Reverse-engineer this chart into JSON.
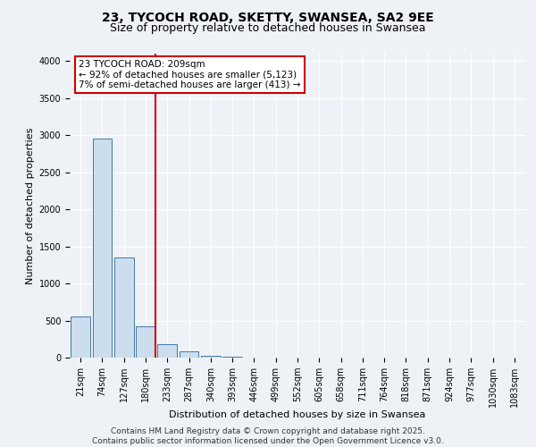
{
  "title": "23, TYCOCH ROAD, SKETTY, SWANSEA, SA2 9EE",
  "subtitle": "Size of property relative to detached houses in Swansea",
  "xlabel": "Distribution of detached houses by size in Swansea",
  "ylabel": "Number of detached properties",
  "categories": [
    "21sqm",
    "74sqm",
    "127sqm",
    "180sqm",
    "233sqm",
    "287sqm",
    "340sqm",
    "393sqm",
    "446sqm",
    "499sqm",
    "552sqm",
    "605sqm",
    "658sqm",
    "711sqm",
    "764sqm",
    "818sqm",
    "871sqm",
    "924sqm",
    "977sqm",
    "1030sqm",
    "1083sqm"
  ],
  "values": [
    560,
    2960,
    1350,
    420,
    175,
    80,
    30,
    12,
    6,
    3,
    2,
    1,
    1,
    0,
    0,
    0,
    0,
    0,
    0,
    0,
    0
  ],
  "bar_color": "#ccdded",
  "bar_edge_color": "#4477aa",
  "red_line_color": "#cc0000",
  "red_line_x": 3.45,
  "annotation_text": "23 TYCOCH ROAD: 209sqm\n← 92% of detached houses are smaller (5,123)\n7% of semi-detached houses are larger (413) →",
  "annotation_box_color": "#cc0000",
  "ylim": [
    0,
    4100
  ],
  "yticks": [
    0,
    500,
    1000,
    1500,
    2000,
    2500,
    3000,
    3500,
    4000
  ],
  "background_color": "#eef2f7",
  "plot_background": "#eef2f7",
  "grid_color": "#ffffff",
  "footer_text": "Contains HM Land Registry data © Crown copyright and database right 2025.\nContains public sector information licensed under the Open Government Licence v3.0.",
  "title_fontsize": 10,
  "subtitle_fontsize": 9,
  "xlabel_fontsize": 8,
  "ylabel_fontsize": 8,
  "tick_fontsize": 7,
  "annotation_fontsize": 7.5,
  "footer_fontsize": 6.5
}
